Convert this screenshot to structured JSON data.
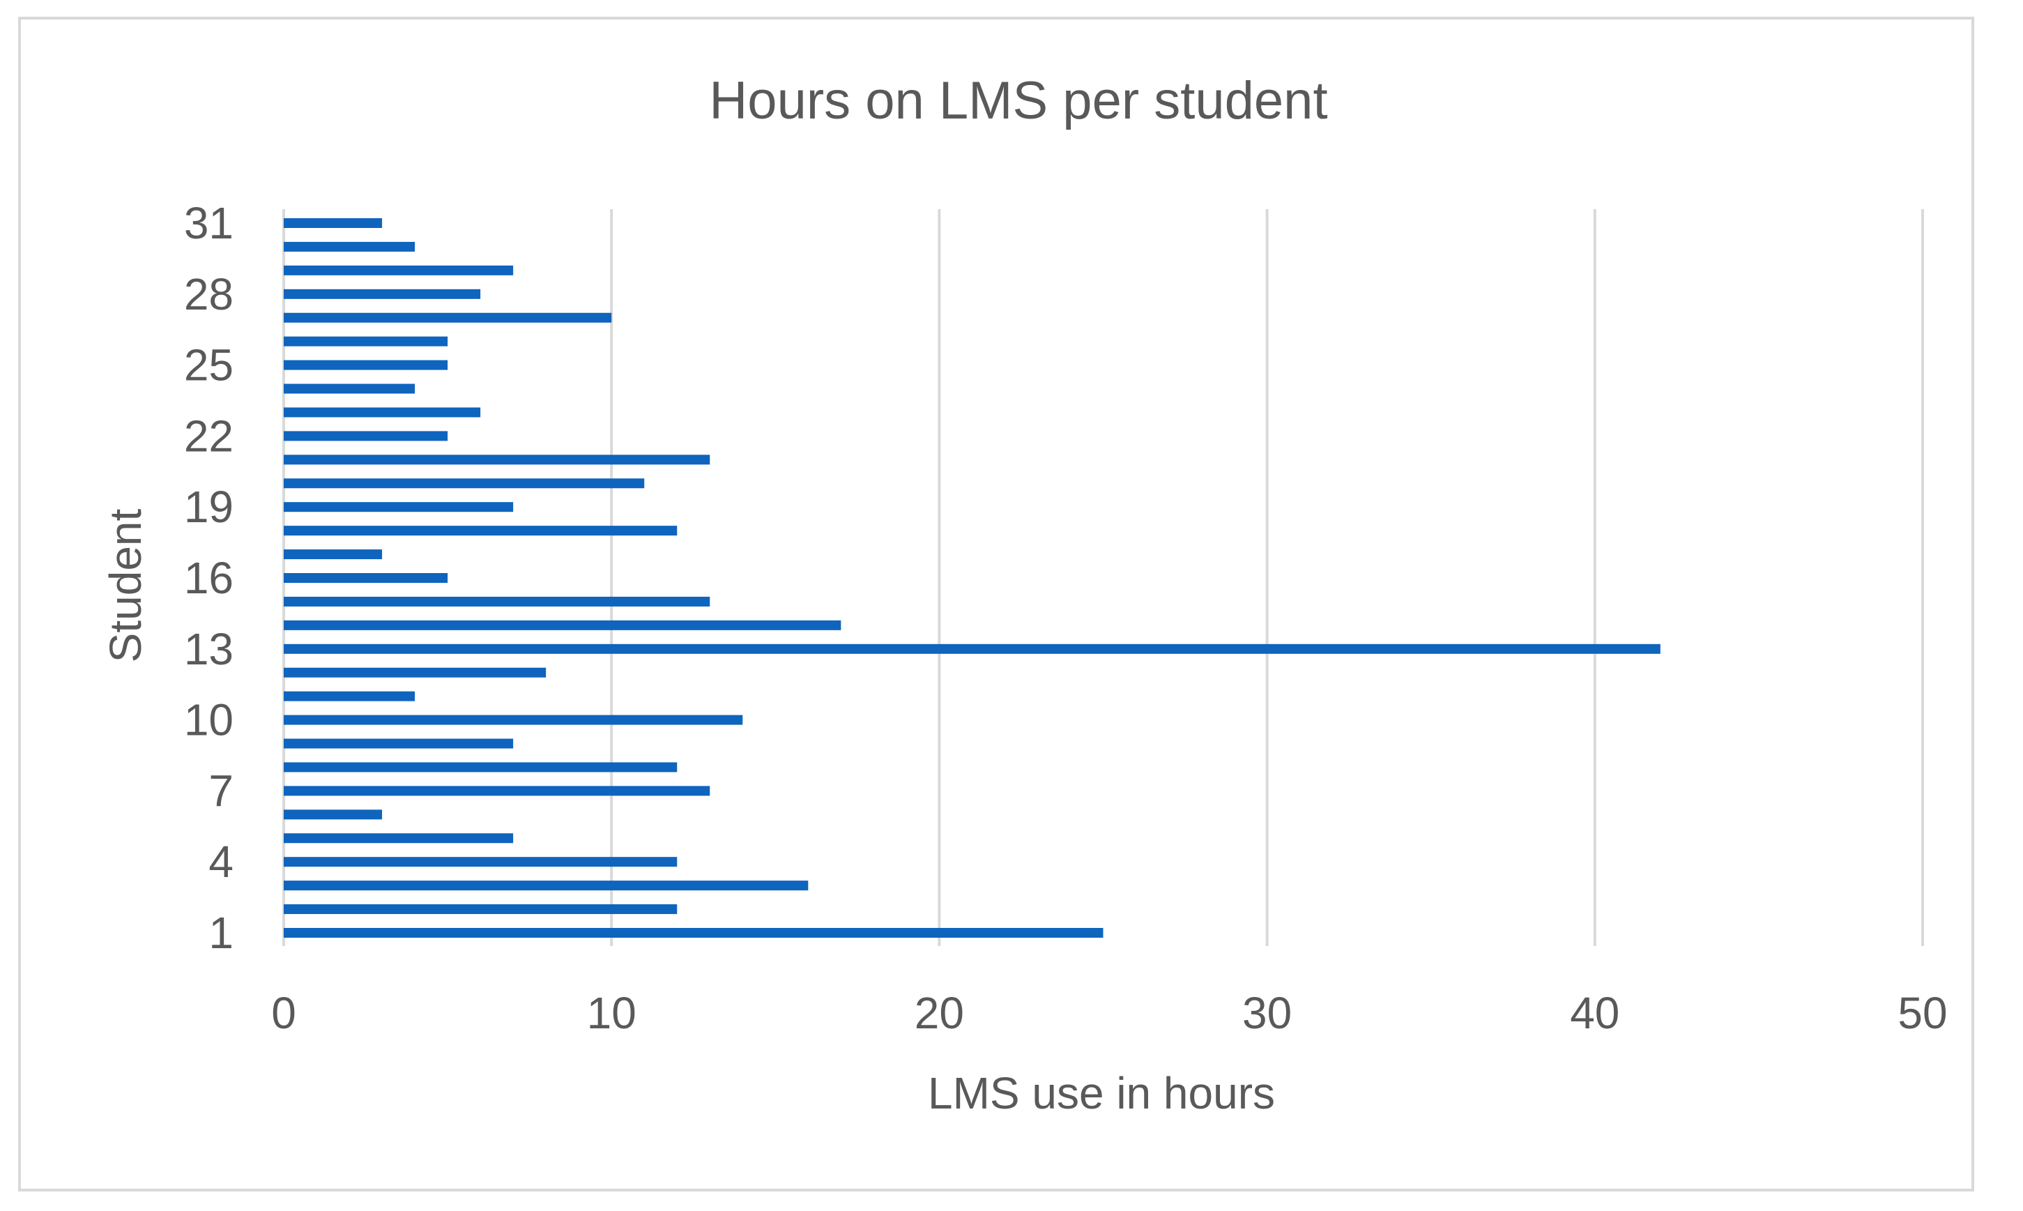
{
  "chart_data": {
    "type": "bar",
    "orientation": "horizontal",
    "title": "Hours on LMS per student",
    "xlabel": "LMS use in hours",
    "ylabel": "Student",
    "xlim": [
      0,
      50
    ],
    "x_ticks": [
      "0",
      "10",
      "20",
      "30",
      "40",
      "50"
    ],
    "y_ticks": [
      "1",
      "4",
      "7",
      "10",
      "13",
      "16",
      "19",
      "22",
      "25",
      "28",
      "31"
    ],
    "grid": "vertical",
    "legend": "none",
    "color": "#0f64be",
    "categories": [
      "1",
      "2",
      "3",
      "4",
      "5",
      "6",
      "7",
      "8",
      "9",
      "10",
      "11",
      "12",
      "13",
      "14",
      "15",
      "16",
      "17",
      "18",
      "19",
      "20",
      "21",
      "22",
      "23",
      "24",
      "25",
      "26",
      "27",
      "28",
      "29",
      "30",
      "31"
    ],
    "values": [
      25,
      12,
      16,
      12,
      7,
      3,
      13,
      12,
      7,
      14,
      4,
      8,
      42,
      17,
      13,
      5,
      3,
      12,
      7,
      11,
      13,
      5,
      6,
      4,
      5,
      5,
      10,
      6,
      7,
      4,
      3
    ]
  }
}
